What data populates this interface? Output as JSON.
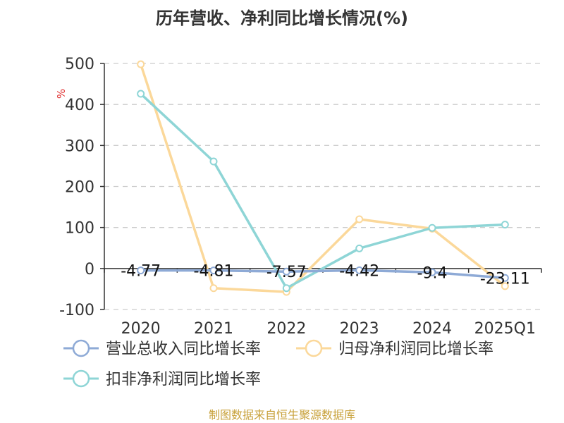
{
  "chart_data": {
    "type": "line",
    "title": "历年营收、净利同比增长情况(%)",
    "ylabel": "%",
    "categories": [
      "2020",
      "2021",
      "2022",
      "2023",
      "2024",
      "2025Q1"
    ],
    "ylim": [
      -100,
      500
    ],
    "yticks": [
      500,
      400,
      300,
      200,
      100,
      0,
      -100
    ],
    "grid": true,
    "legend_position": "bottom",
    "series": [
      {
        "name": "营业总收入同比增长率",
        "color": "#8eaad6",
        "values": [
          -4.77,
          -4.81,
          -7.57,
          -4.42,
          -9.4,
          -23.11
        ],
        "labels": [
          "-4.77",
          "-4.81",
          "-7.57",
          "-4.42",
          "-9.4",
          "-23.11"
        ]
      },
      {
        "name": "归母净利润同比增长率",
        "color": "#fbd89a",
        "values": [
          498,
          -48,
          -57,
          120,
          97,
          -43
        ]
      },
      {
        "name": "扣非净利润同比增长率",
        "color": "#8ed5d6",
        "values": [
          426,
          261,
          -48,
          49,
          99,
          107
        ]
      }
    ]
  },
  "colors": {
    "unit": "#e03131",
    "source": "#c8a13a",
    "grid": "#cccccc",
    "axis": "#333333"
  },
  "source": "制图数据来自恒生聚源数据库"
}
